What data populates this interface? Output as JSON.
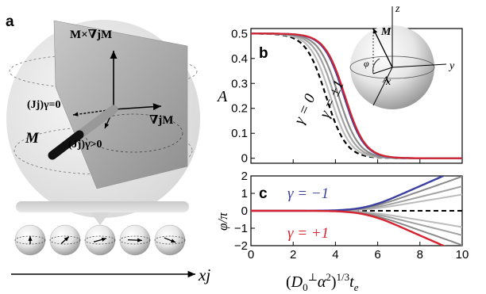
{
  "panels": {
    "a": "a",
    "b": "b",
    "c": "c"
  },
  "diagram_a": {
    "labels": {
      "cross": "M×∇jM",
      "grad": "∇jM",
      "j0": "(Jj)γ=0",
      "jpos": "(Jj)γ>0",
      "M": "M",
      "xj": "xj"
    },
    "spins_count": 5
  },
  "inset": {
    "labels": {
      "z": "z",
      "y": "y",
      "x": "x",
      "M": "M",
      "A": "A",
      "phi": "φ"
    }
  },
  "chart_data": [
    {
      "type": "line",
      "panel": "b",
      "ylabel": "A",
      "xlim": [
        0,
        10
      ],
      "ylim": [
        -0.02,
        0.52
      ],
      "yticks": [
        0,
        0.1,
        0.2,
        0.3,
        0.4,
        0.5
      ],
      "yticklabels": [
        "0",
        "0.1",
        "0.2",
        "0.3",
        "0.4",
        "0.5"
      ],
      "annotations": [
        "γ = ±1",
        "γ = 0"
      ],
      "series": [
        {
          "style": "dashed",
          "color": "#000000",
          "x0": 3.55,
          "w": 0.95
        },
        {
          "style": "solid",
          "color": "#bcbcbc",
          "x0": 3.75,
          "w": 0.95
        },
        {
          "style": "solid",
          "color": "#a2a2a2",
          "x0": 3.95,
          "w": 0.95
        },
        {
          "style": "solid",
          "color": "#8a8a8a",
          "x0": 4.15,
          "w": 0.95
        },
        {
          "style": "solid",
          "color": "#3a3fa0",
          "x0": 4.4,
          "w": 0.95
        },
        {
          "style": "solid",
          "color": "#d6232f",
          "x0": 4.45,
          "w": 0.95
        }
      ]
    },
    {
      "type": "line",
      "panel": "c",
      "ylabel": "φ/π",
      "xlabel": "(D0⊥α²)^(1/3) te",
      "xlim": [
        0,
        10
      ],
      "ylim": [
        -2,
        2
      ],
      "xticks": [
        0,
        2,
        4,
        6,
        8,
        10
      ],
      "xticklabels": [
        "0",
        "2",
        "4",
        "6",
        "8",
        "10"
      ],
      "yticks": [
        -2,
        -1,
        0,
        1,
        2
      ],
      "yticklabels": [
        "−2",
        "−1",
        "0",
        "1",
        "2"
      ],
      "annotations": [
        "γ = −1",
        "γ = +1"
      ],
      "series": [
        {
          "name": "γ = −1",
          "color": "#3a3fa0",
          "style": "solid",
          "end": 2.4,
          "pow": 3.0
        },
        {
          "color": "#8a8a8a",
          "style": "solid",
          "end": 1.9,
          "pow": 3.0
        },
        {
          "color": "#a2a2a2",
          "style": "solid",
          "end": 1.35,
          "pow": 3.0
        },
        {
          "color": "#bcbcbc",
          "style": "solid",
          "end": 0.9,
          "pow": 3.0
        },
        {
          "color": "#000000",
          "style": "dashed",
          "end": 0.0,
          "pow": 3.0
        },
        {
          "color": "#bcbcbc",
          "style": "solid",
          "end": -0.9,
          "pow": 3.0
        },
        {
          "color": "#a2a2a2",
          "style": "solid",
          "end": -1.35,
          "pow": 3.0
        },
        {
          "color": "#8a8a8a",
          "style": "solid",
          "end": -1.9,
          "pow": 3.0
        },
        {
          "name": "γ = +1",
          "color": "#d6232f",
          "style": "solid",
          "end": -2.4,
          "pow": 3.0
        }
      ]
    }
  ],
  "colors": {
    "blue": "#3a3fa0",
    "red": "#d6232f"
  }
}
